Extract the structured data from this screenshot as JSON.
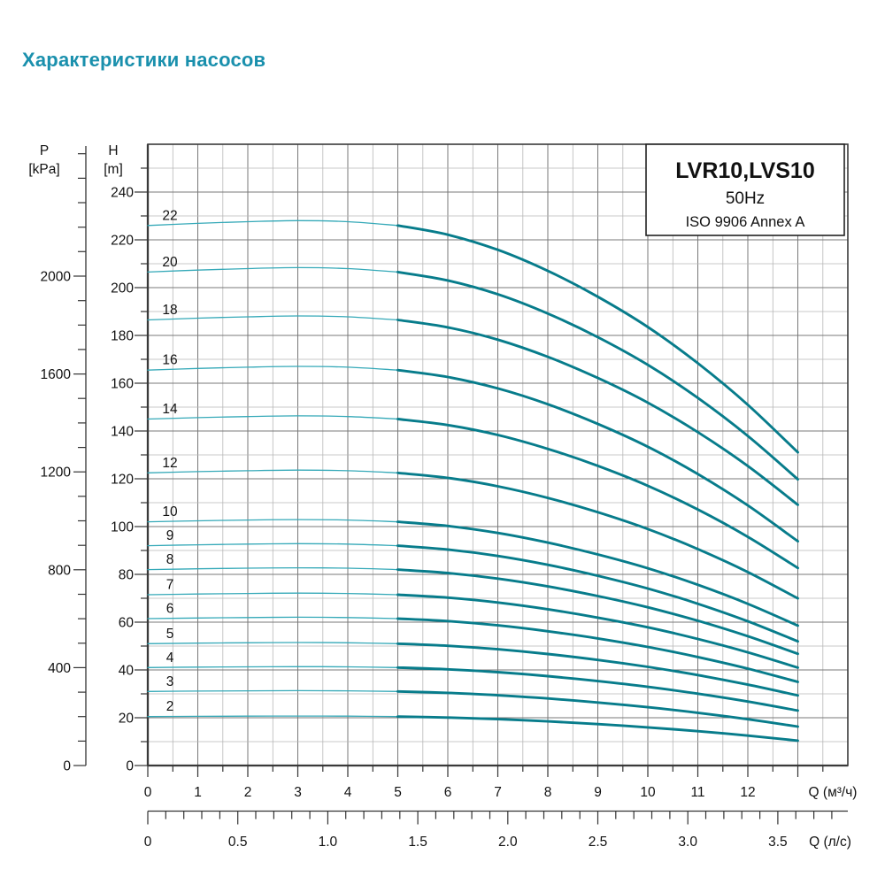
{
  "page": {
    "title": "Характеристики насосов",
    "title_color": "#1a90ad",
    "background": "#ffffff"
  },
  "chart_data": {
    "type": "line",
    "title_box": {
      "model": "LVR10,LVS10",
      "frequency": "50Hz",
      "standard": "ISO 9906 Annex A"
    },
    "axes": {
      "pressure": {
        "label": "P",
        "unit": "[kPa]",
        "tick_labels": [
          "0",
          "400",
          "800",
          "1200",
          "1600",
          "2000"
        ],
        "labeled_values": [
          0,
          400,
          800,
          1200,
          1600,
          2000
        ],
        "minor_step": 100,
        "minor_max": 2500
      },
      "head": {
        "label": "H",
        "unit": "[m]",
        "tick_labels": [
          "0",
          "20",
          "40",
          "60",
          "80",
          "100",
          "120",
          "140",
          "160",
          "180",
          "200",
          "220",
          "240"
        ],
        "labeled_values": [
          0,
          20,
          40,
          60,
          80,
          100,
          120,
          140,
          160,
          180,
          200,
          220,
          240
        ],
        "minor_step": 10,
        "axis_max": 260
      },
      "flow_m3h": {
        "label": "Q (м³/ч)",
        "tick_labels": [
          "0",
          "1",
          "2",
          "3",
          "4",
          "5",
          "6",
          "7",
          "8",
          "9",
          "10",
          "11",
          "12"
        ],
        "labeled_values": [
          0,
          1,
          2,
          3,
          4,
          5,
          6,
          7,
          8,
          9,
          10,
          11,
          12
        ],
        "minor_step": 0.5,
        "axis_max": 14
      },
      "flow_ls": {
        "label": "Q (л/с)",
        "tick_labels": [
          "0",
          "0.5",
          "1.0",
          "1.5",
          "2.0",
          "2.5",
          "3.0",
          "3.5"
        ],
        "labeled_values": [
          0,
          0.5,
          1.0,
          1.5,
          2.0,
          2.5,
          3.0,
          3.5
        ],
        "minor_step": 0.1,
        "minor_max": 3.8
      }
    },
    "flow_range_m3h": [
      0,
      13
    ],
    "thick_from_q_m3h": 5,
    "curve_shape": {
      "q": [
        0,
        1,
        2,
        3,
        4,
        5,
        6,
        7,
        8,
        9,
        10,
        11,
        12,
        13
      ],
      "f": [
        1.0,
        1.004,
        1.007,
        1.009,
        1.007,
        1.0,
        0.983,
        0.955,
        0.916,
        0.868,
        0.812,
        0.745,
        0.668,
        0.58
      ]
    },
    "curves": [
      {
        "stages": "22",
        "h0_m": 226,
        "end_ratio": 0.58
      },
      {
        "stages": "20",
        "h0_m": 206.5,
        "end_ratio": 0.58
      },
      {
        "stages": "18",
        "h0_m": 186.5,
        "end_ratio": 0.585
      },
      {
        "stages": "16",
        "h0_m": 165.5,
        "end_ratio": 0.567
      },
      {
        "stages": "14",
        "h0_m": 145,
        "end_ratio": 0.57
      },
      {
        "stages": "12",
        "h0_m": 122.5,
        "end_ratio": 0.571
      },
      {
        "stages": "10",
        "h0_m": 102,
        "end_ratio": 0.574
      },
      {
        "stages": "9",
        "h0_m": 92,
        "end_ratio": 0.565
      },
      {
        "stages": "8",
        "h0_m": 82,
        "end_ratio": 0.57
      },
      {
        "stages": "7",
        "h0_m": 71.5,
        "end_ratio": 0.573
      },
      {
        "stages": "6",
        "h0_m": 61.5,
        "end_ratio": 0.569
      },
      {
        "stages": "5",
        "h0_m": 51,
        "end_ratio": 0.575
      },
      {
        "stages": "4",
        "h0_m": 41,
        "end_ratio": 0.561
      },
      {
        "stages": "3",
        "h0_m": 31,
        "end_ratio": 0.526
      },
      {
        "stages": "2",
        "h0_m": 20.5,
        "end_ratio": 0.507
      }
    ],
    "colors": {
      "curve_thin": "#35a9b8",
      "curve_thick": "#077c8b",
      "grid_major": "#787878",
      "grid_minor": "#b7b7b7",
      "border": "#3a3a3a",
      "tick": "#333333"
    }
  }
}
